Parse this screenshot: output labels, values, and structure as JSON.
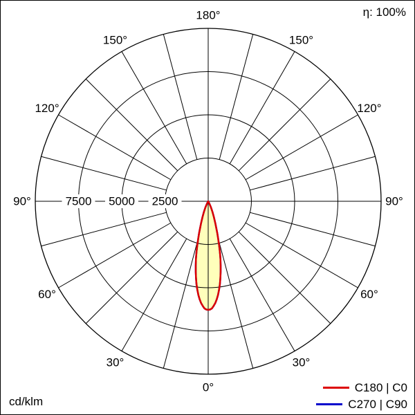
{
  "header": {
    "efficiency": "η: 100%"
  },
  "footer": {
    "unit": "cd/klm"
  },
  "legend": {
    "items": [
      {
        "label": "C180 | C0",
        "color": "#dd0000"
      },
      {
        "label": "C270 | C90",
        "color": "#0000cc"
      }
    ]
  },
  "chart_data": {
    "type": "polar",
    "subtype": "photometric-intensity-curve",
    "unit": "cd/klm",
    "efficiency_percent": 100,
    "radial_ticks": [
      2500,
      5000,
      7500
    ],
    "radial_max": 10000,
    "angle_labels_deg": [
      0,
      30,
      60,
      90,
      120,
      150,
      180
    ],
    "spoke_step_deg": 15,
    "grid": true,
    "fill_color": "#ffffbb",
    "series": [
      {
        "name": "C180 | C0",
        "color": "#dd0000",
        "gamma_deg": [
          0,
          1,
          2,
          3,
          4,
          5,
          6,
          7,
          8,
          9,
          10,
          11,
          12,
          13,
          14,
          15,
          16,
          18,
          20,
          22,
          24,
          26,
          28,
          30,
          32
        ],
        "values_cd_per_klm": [
          6280,
          6260,
          6200,
          6060,
          5900,
          5690,
          5450,
          5160,
          4850,
          4510,
          4150,
          3780,
          3400,
          3000,
          2600,
          2230,
          1900,
          1350,
          950,
          650,
          420,
          250,
          130,
          50,
          0
        ]
      },
      {
        "name": "C270 | C90",
        "color": "#0000cc",
        "gamma_deg": [
          0,
          1,
          2,
          3,
          4,
          5,
          6,
          7,
          8,
          9,
          10,
          11,
          12,
          13,
          14,
          15,
          16,
          18,
          20,
          22,
          24,
          26,
          28,
          30,
          32
        ],
        "values_cd_per_klm": [
          6280,
          6260,
          6200,
          6060,
          5900,
          5690,
          5450,
          5160,
          4850,
          4510,
          4150,
          3780,
          3400,
          3000,
          2600,
          2230,
          1900,
          1350,
          950,
          650,
          420,
          250,
          130,
          50,
          0
        ]
      }
    ]
  }
}
